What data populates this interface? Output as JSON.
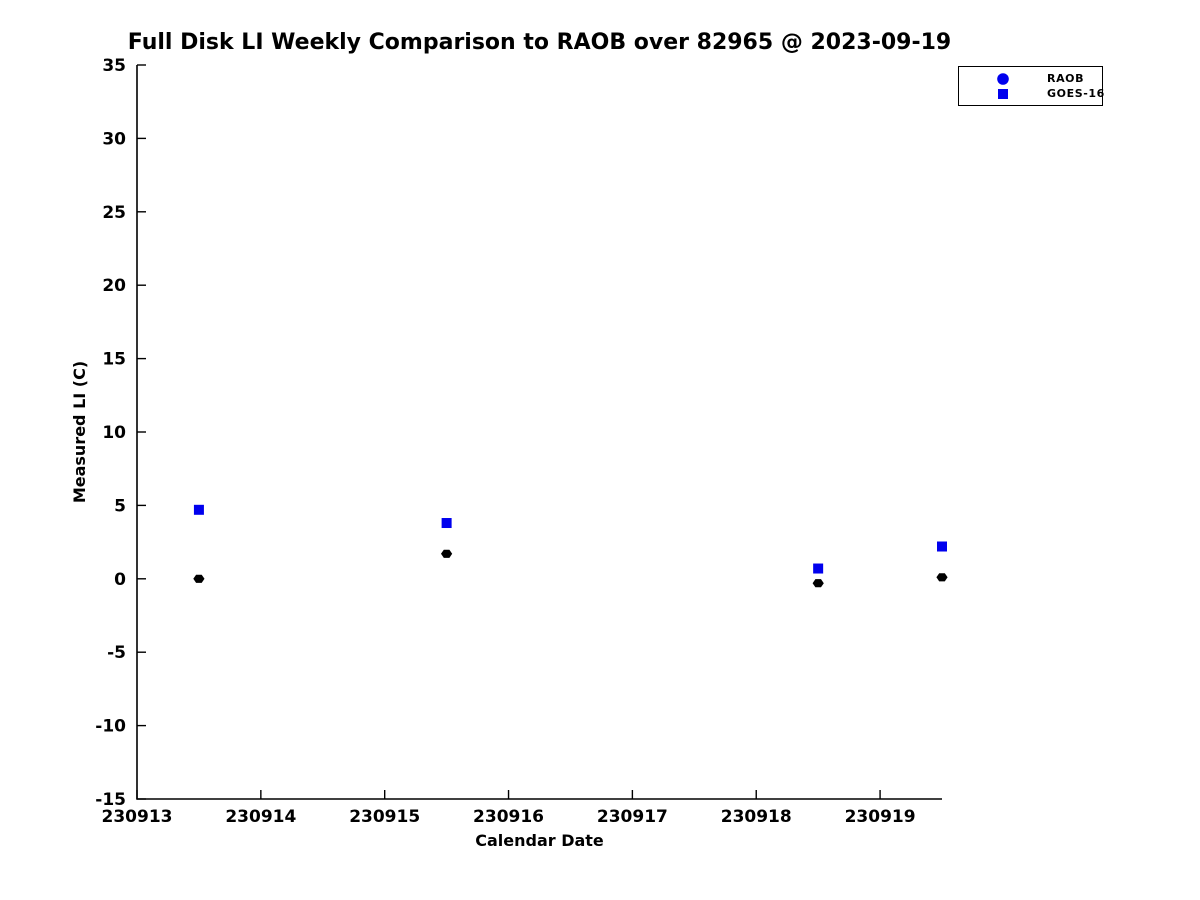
{
  "title": "Full Disk LI Weekly Comparison to RAOB over 82965 @ 2023-09-19",
  "chart_data": {
    "type": "scatter",
    "title": "Full Disk LI Weekly Comparison to RAOB over 82965 @ 2023-09-19",
    "xlabel": "Calendar Date",
    "ylabel": "Measured LI (C)",
    "xlim": [
      230913,
      230919.5
    ],
    "ylim": [
      -15,
      35
    ],
    "x_ticks": [
      230913,
      230914,
      230915,
      230916,
      230917,
      230918,
      230919
    ],
    "y_ticks": [
      35,
      30,
      25,
      20,
      15,
      10,
      5,
      0,
      -5,
      -10,
      -15
    ],
    "grid": false,
    "legend": {
      "position": "top-right",
      "entries": [
        {
          "label": "RAOB",
          "marker": "circle",
          "color": "#0000ee"
        },
        {
          "label": "GOES-16",
          "marker": "square",
          "color": "#0000ee"
        }
      ]
    },
    "series": [
      {
        "name": "RAOB",
        "marker": "hexagon",
        "color": "#000000",
        "points": [
          {
            "x": 230913.5,
            "y": 0.0
          },
          {
            "x": 230915.5,
            "y": 1.7
          },
          {
            "x": 230918.5,
            "y": -0.3
          },
          {
            "x": 230919.5,
            "y": 0.1
          }
        ]
      },
      {
        "name": "GOES-16",
        "marker": "square",
        "color": "#0000ee",
        "points": [
          {
            "x": 230913.5,
            "y": 4.7
          },
          {
            "x": 230915.5,
            "y": 3.8
          },
          {
            "x": 230918.5,
            "y": 0.7
          },
          {
            "x": 230919.5,
            "y": 2.2
          }
        ]
      }
    ]
  },
  "colors": {
    "background": "#ffffff",
    "axis": "#000000",
    "text": "#000000",
    "raob_marker": "#000000",
    "goes16_marker": "#0000ee"
  }
}
